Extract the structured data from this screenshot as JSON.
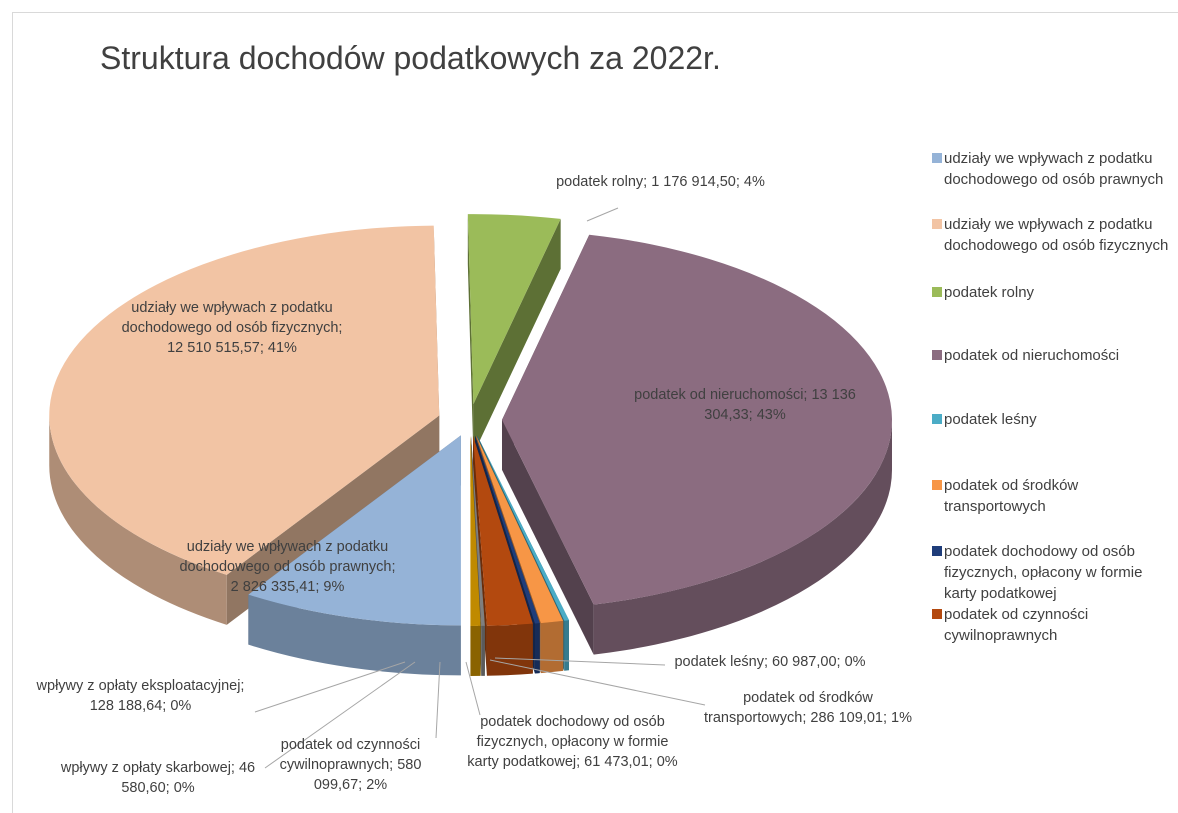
{
  "chart_data": {
    "type": "pie",
    "title": "Struktura dochodów podatkowych za 2022r.",
    "categories": [
      "udziały we wpływach z podatku dochodowego od osób prawnych",
      "udziały we wpływach z podatku dochodowego od osób fizycznych",
      "podatek rolny",
      "podatek od nieruchomości",
      "podatek leśny",
      "podatek od środków transportowych",
      "podatek dochodowy od osób fizycznych, opłacony w formie karty podatkowej",
      "podatek od czynności cywilnoprawnych",
      "wpływy z opłaty skarbowej",
      "wpływy z opłaty eksploatacyjnej"
    ],
    "values": [
      2826335.41,
      12510515.57,
      1176914.5,
      13136304.33,
      60987.0,
      286109.01,
      61473.01,
      580099.67,
      46580.6,
      128188.64
    ],
    "value_labels": [
      "udziały we wpływach z podatku dochodowego od osób prawnych; 2 826 335,41; 9%",
      "udziały we wpływach z podatku dochodowego od osób fizycznych; 12 510 515,57; 41%",
      "podatek rolny; 1 176 914,50; 4%",
      "podatek od nieruchomości; 13 136 304,33; 43%",
      "podatek leśny; 60 987,00; 0%",
      "podatek od środków transportowych; 286 109,01; 1%",
      "podatek dochodowy od osób fizycznych, opłacony w formie karty podatkowej; 61 473,01; 0%",
      "podatek od czynności cywilnoprawnych; 580 099,67; 2%",
      "wpływy z opłaty skarbowej; 46 580,60; 0%",
      "wpływy z opłaty eksploatacyjnej; 128 188,64; 0%"
    ],
    "colors": [
      "#95b3d7",
      "#f2c4a4",
      "#9bbb59",
      "#8b6c80",
      "#4bacc6",
      "#f79646",
      "#1f3d7a",
      "#b3490f",
      "#7f7f7f",
      "#c08a00"
    ],
    "legend": "right"
  }
}
